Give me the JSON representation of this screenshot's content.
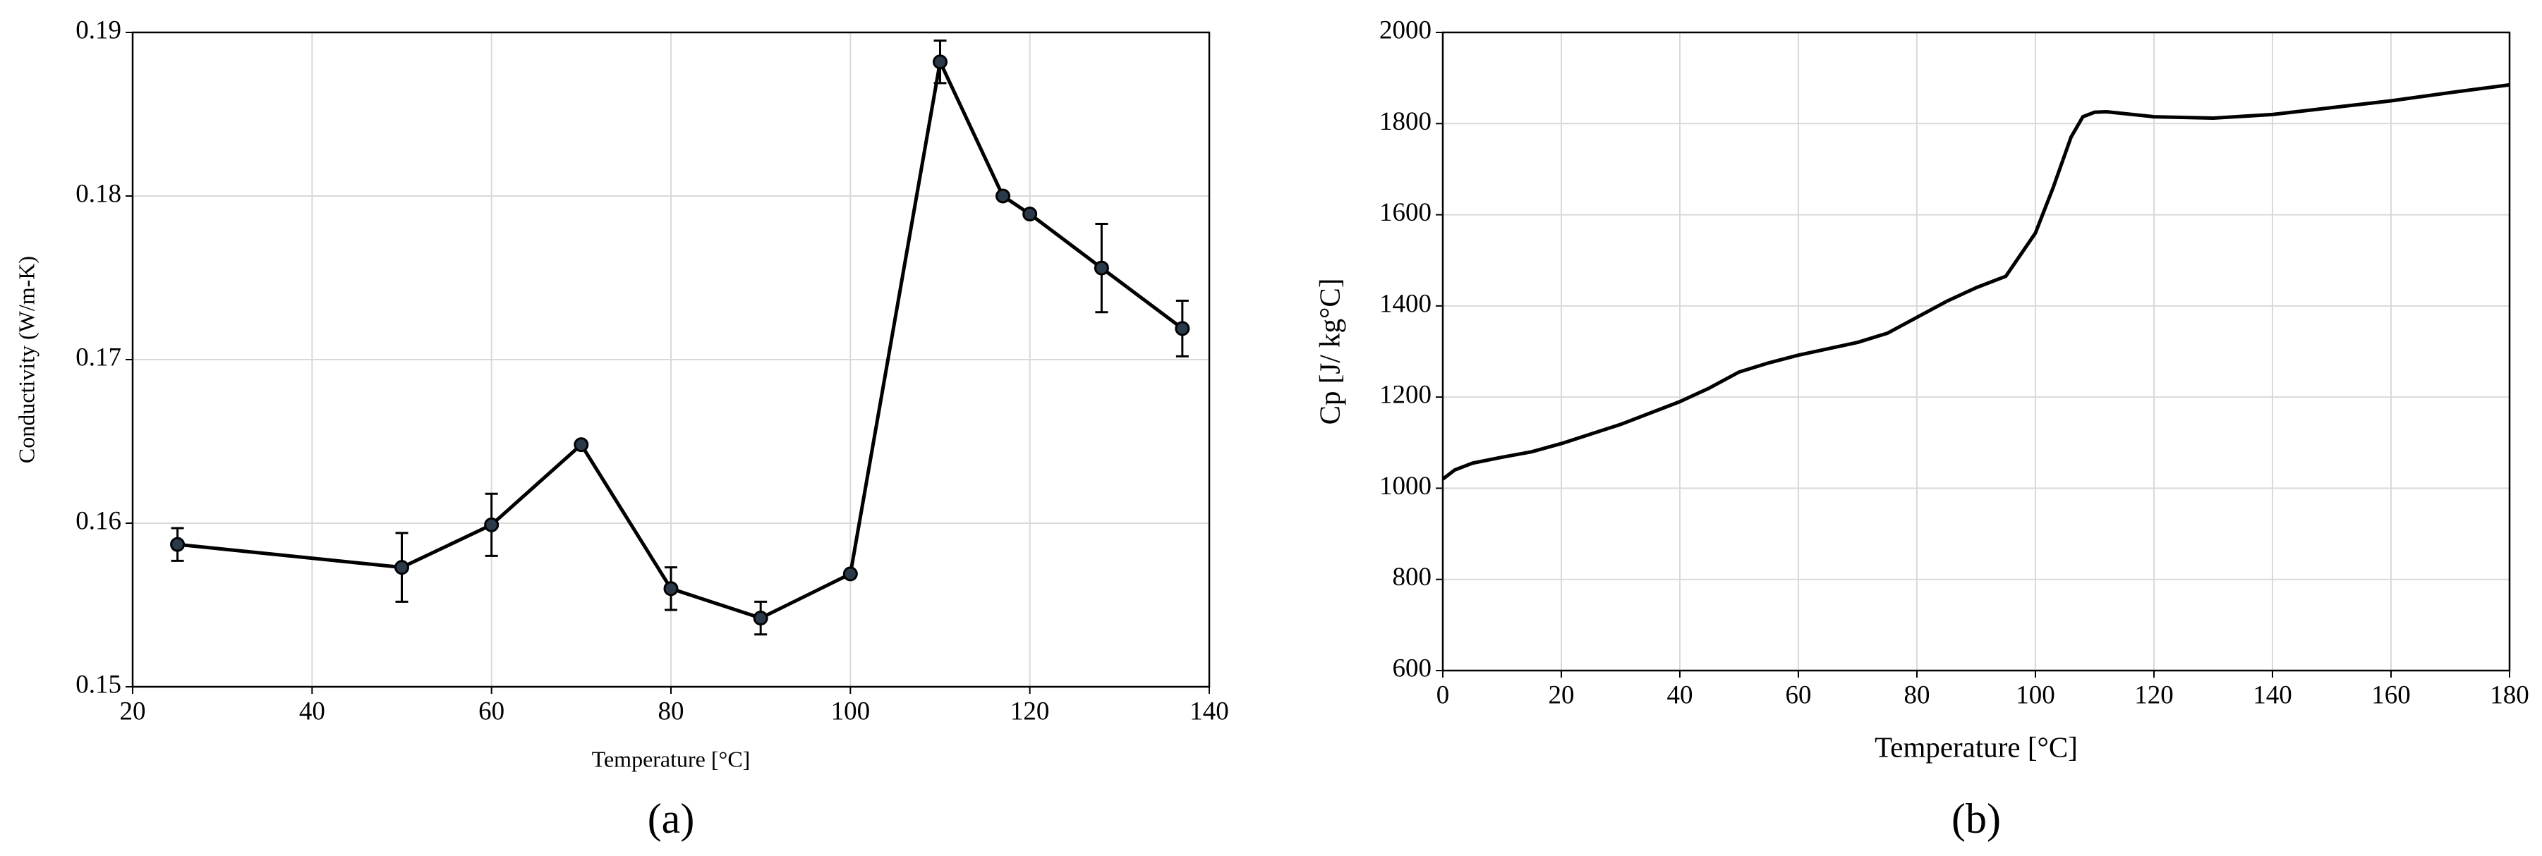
{
  "chart_data": [
    {
      "type": "line",
      "caption": "(a)",
      "xlabel": "Temperature [°C]",
      "ylabel": "Conductivity (W/m-K)",
      "x": [
        25,
        50,
        60,
        70,
        80,
        90,
        100,
        110,
        117,
        120,
        128,
        137
      ],
      "values": [
        0.1587,
        0.1573,
        0.1599,
        0.1648,
        0.156,
        0.1542,
        0.1569,
        0.1882,
        0.18,
        0.1789,
        0.1756,
        0.1719
      ],
      "errors": [
        0.001,
        0.0021,
        0.0019,
        0,
        0.0013,
        0.001,
        0,
        0.0013,
        0,
        0,
        0.0027,
        0.0017
      ],
      "color": "#000000",
      "markers": true,
      "xlim": [
        20,
        140
      ],
      "xticks": [
        20,
        40,
        60,
        80,
        100,
        120,
        140
      ],
      "ylim": [
        0.15,
        0.19
      ],
      "yticks": [
        0.15,
        0.16,
        0.17,
        0.18,
        0.19
      ],
      "grid": true
    },
    {
      "type": "line",
      "caption": "(b)",
      "xlabel": "Temperature [°C]",
      "ylabel": "Cp [J/ kg°C]",
      "x": [
        0,
        2,
        5,
        10,
        15,
        20,
        30,
        40,
        45,
        50,
        55,
        60,
        70,
        75,
        80,
        85,
        90,
        95,
        100,
        103,
        106,
        108,
        110,
        112,
        120,
        130,
        140,
        150,
        160,
        170,
        180
      ],
      "values": [
        1020,
        1040,
        1055,
        1068,
        1080,
        1098,
        1140,
        1190,
        1220,
        1255,
        1275,
        1292,
        1320,
        1340,
        1375,
        1410,
        1440,
        1465,
        1560,
        1660,
        1770,
        1815,
        1825,
        1826,
        1815,
        1812,
        1820,
        1835,
        1850,
        1868,
        1885
      ],
      "color": "#000000",
      "markers": false,
      "xlim": [
        0,
        180
      ],
      "xticks": [
        0,
        20,
        40,
        60,
        80,
        100,
        120,
        140,
        160,
        180
      ],
      "ylim": [
        600,
        2000
      ],
      "yticks": [
        600,
        800,
        1000,
        1200,
        1400,
        1600,
        1800,
        2000
      ],
      "grid": true
    }
  ]
}
